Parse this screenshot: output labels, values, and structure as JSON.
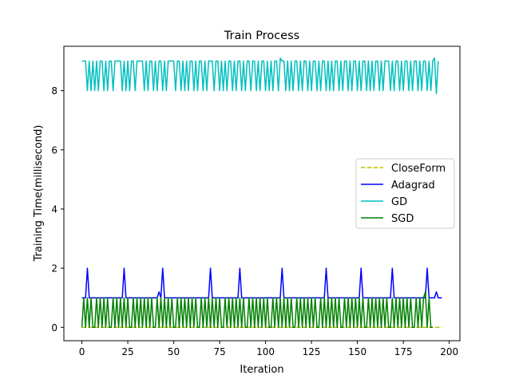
{
  "chart_data": {
    "type": "line",
    "title": "Train Process",
    "xlabel": "Iteration",
    "ylabel": "Training Time(millisecond)",
    "xlim": [
      -9.8,
      205.8
    ],
    "ylim": [
      -0.45,
      9.5
    ],
    "xticks": [
      0,
      25,
      50,
      75,
      100,
      125,
      150,
      175,
      200
    ],
    "yticks": [
      0,
      2,
      4,
      6,
      8
    ],
    "xtick_labels": [
      "0",
      "25",
      "50",
      "75",
      "100",
      "125",
      "150",
      "175",
      "200"
    ],
    "ytick_labels": [
      "0",
      "2",
      "4",
      "6",
      "8"
    ],
    "grid": false,
    "legend_position": "center-right",
    "iterations": 197,
    "series": [
      {
        "name": "CloseForm",
        "color": "#bfbf00",
        "dash": "dashed",
        "values": [
          0.0
        ]
      },
      {
        "name": "Adagrad",
        "color": "#0000ff",
        "dash": "solid",
        "base": 1.0,
        "spikes": [
          [
            3,
            2.0
          ],
          [
            23,
            2.0
          ],
          [
            42,
            1.2
          ],
          [
            44,
            2.0
          ],
          [
            70,
            2.0
          ],
          [
            86,
            2.0
          ],
          [
            109,
            2.0
          ],
          [
            133,
            2.0
          ],
          [
            152,
            2.0
          ],
          [
            169,
            2.0
          ],
          [
            188,
            2.0
          ],
          [
            193,
            1.2
          ]
        ]
      },
      {
        "name": "GD",
        "color": "#00bfbf",
        "dash": "solid",
        "values": [
          9,
          9,
          9,
          8,
          9,
          8,
          9,
          8,
          9,
          8,
          9,
          9,
          8,
          9,
          8,
          9,
          9,
          8,
          9,
          9,
          9,
          9,
          8,
          9,
          8,
          9,
          8,
          9,
          9,
          8,
          9,
          9,
          9,
          9,
          8,
          9,
          8,
          9,
          9,
          8,
          9,
          8,
          9,
          9,
          8,
          9,
          8,
          9,
          9,
          9,
          9,
          8,
          9,
          9,
          8,
          9,
          8,
          9,
          8,
          9,
          9,
          8,
          9,
          8,
          9,
          9,
          8,
          9,
          8,
          9,
          9,
          9,
          8,
          9,
          9,
          8,
          9,
          8,
          9,
          8,
          9,
          9,
          8,
          9,
          8,
          9,
          9,
          8,
          9,
          8,
          9,
          9,
          8,
          9,
          9,
          8,
          9,
          8,
          9,
          9,
          8,
          9,
          8,
          9,
          8,
          9,
          9,
          8,
          9.1,
          9,
          9,
          8,
          9,
          8,
          9,
          8,
          9,
          9,
          8,
          9,
          8,
          9,
          9,
          8,
          9,
          8,
          9,
          9,
          8,
          9,
          8,
          9,
          9,
          8,
          9,
          8,
          9,
          8,
          9,
          9,
          8,
          9,
          8,
          9,
          9,
          8,
          9,
          8,
          9,
          9,
          8,
          9,
          8,
          9,
          9,
          8,
          9,
          8,
          9,
          8,
          9,
          9,
          8,
          9,
          8,
          9,
          9,
          9,
          8,
          9,
          8,
          9,
          9,
          8,
          9,
          8,
          9,
          9,
          8,
          9,
          8,
          9,
          9,
          8,
          9,
          8,
          9,
          9,
          8,
          9,
          8,
          9,
          9.1,
          7.9,
          9
        ]
      },
      {
        "name": "SGD",
        "color": "#008000",
        "dash": "solid",
        "values": [
          0,
          1,
          0,
          1,
          0,
          1,
          0,
          0,
          1,
          0,
          1,
          0,
          1,
          0,
          1,
          0,
          0,
          1,
          0,
          1,
          0,
          1,
          0,
          1,
          0,
          1,
          0,
          0,
          1,
          0,
          1,
          0,
          1,
          0,
          1,
          0,
          1,
          0,
          1,
          0,
          0,
          1,
          0,
          1,
          0,
          1,
          0,
          1,
          0,
          1,
          0,
          0,
          1,
          0,
          1,
          0,
          1,
          0,
          1,
          0,
          1,
          0,
          1,
          0,
          0,
          1,
          0,
          1,
          0,
          1,
          0,
          1,
          0,
          1,
          0,
          1,
          0,
          0,
          1,
          0,
          1,
          0,
          1,
          0,
          1,
          0,
          1,
          0,
          1,
          0,
          0,
          1,
          0,
          1,
          0,
          1,
          0,
          1,
          0,
          1,
          0,
          1,
          0,
          0,
          1,
          0,
          1,
          0,
          1,
          0,
          1,
          0,
          1,
          0,
          1,
          0,
          0,
          1,
          0,
          1,
          0,
          1,
          0,
          1,
          0,
          1,
          0,
          1,
          0,
          0,
          1,
          0,
          1,
          0,
          1,
          0,
          1,
          0,
          1,
          0,
          1,
          0,
          0,
          1,
          0,
          1,
          0,
          1,
          0,
          1,
          0,
          1,
          0,
          1,
          0,
          0,
          1,
          0,
          1,
          0,
          1,
          0,
          1,
          0,
          1,
          0,
          1,
          0,
          0,
          1,
          0,
          1,
          0,
          1,
          0,
          1,
          0,
          1,
          0,
          1,
          0,
          0,
          1,
          0,
          1,
          0,
          1,
          1.2,
          0,
          1,
          0,
          0
        ]
      }
    ]
  }
}
